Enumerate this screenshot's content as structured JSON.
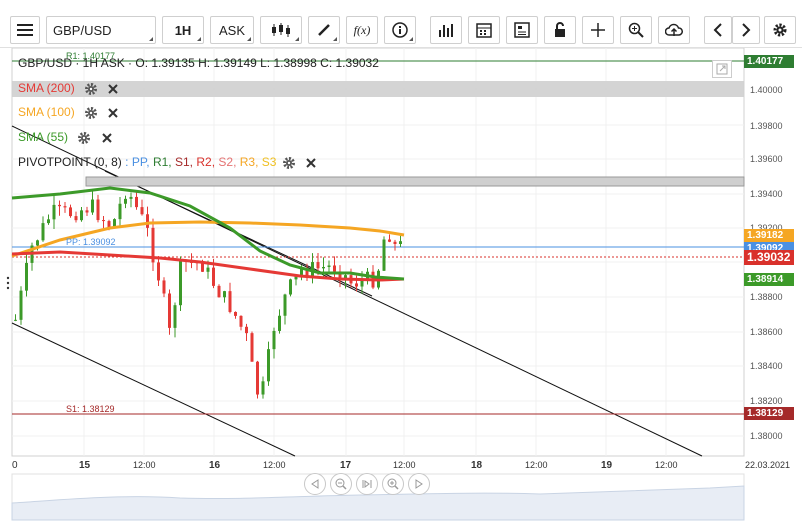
{
  "toolbar": {
    "symbol": "GBP/USD",
    "interval": "1H",
    "price_type": "ASK"
  },
  "quote": {
    "text": "GBP/USD · 1H ASK · O: 1.39135 H: 1.39149 L: 1.38998 C: 1.39032"
  },
  "indicators": {
    "sma200": "SMA (200)",
    "sma100": "SMA (100)",
    "sma55": "SMA (55)",
    "pivot_name": "PIVOTPOINT (0, 8)",
    "pivot_pp": ": PP,",
    "pivot_r1": "R1,",
    "pivot_s1": "S1,",
    "pivot_r2": "R2,",
    "pivot_s2": "S2,",
    "pivot_r3": "R3,",
    "pivot_s3": "S3"
  },
  "levels": {
    "r1_label": "R1: 1.40177",
    "pp_label": "PP: 1.39092",
    "s1_label": "S1: 1.38129"
  },
  "price_tags": {
    "r1": "1.40177",
    "sma100": "1.39182",
    "pp": "1.39092",
    "last": "1.39032",
    "sma55": "1.38914",
    "s1": "1.38129"
  },
  "y_axis": [
    "1.40000",
    "1.39800",
    "1.39600",
    "1.39400",
    "1.39200",
    "1.38800",
    "1.38600",
    "1.38400",
    "1.38200",
    "1.38000"
  ],
  "x_axis": [
    "0",
    "15",
    "12:00",
    "16",
    "12:00",
    "17",
    "12:00",
    "18",
    "12:00",
    "19",
    "12:00",
    "22.03.2021"
  ],
  "colors": {
    "sma200": "#e53935",
    "sma100": "#f5a623",
    "sma55": "#3c9a29",
    "pp": "#4a90e2",
    "r1": "#2e7d32",
    "s1": "#a52a2a",
    "last": "#d9312b",
    "bull": "#3c9a29",
    "bear": "#e53935"
  }
}
